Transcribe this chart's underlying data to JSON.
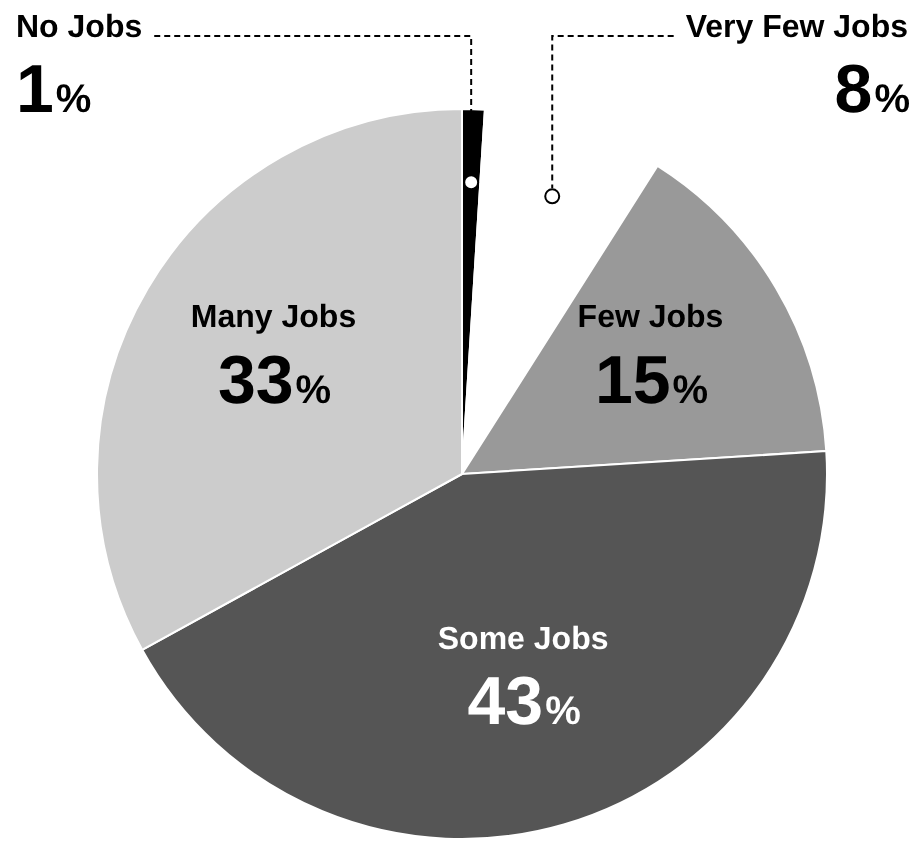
{
  "chart_data": {
    "type": "pie",
    "categories": [
      "No Jobs",
      "Very Few Jobs",
      "Few Jobs",
      "Some Jobs",
      "Many Jobs"
    ],
    "values": [
      1,
      8,
      15,
      43,
      33
    ],
    "colors": [
      "#000000",
      "#ffffff",
      "#999999",
      "#555555",
      "#cccccc"
    ],
    "value_labels": [
      "1%",
      "8%",
      "15%",
      "43%",
      "33%"
    ]
  }
}
